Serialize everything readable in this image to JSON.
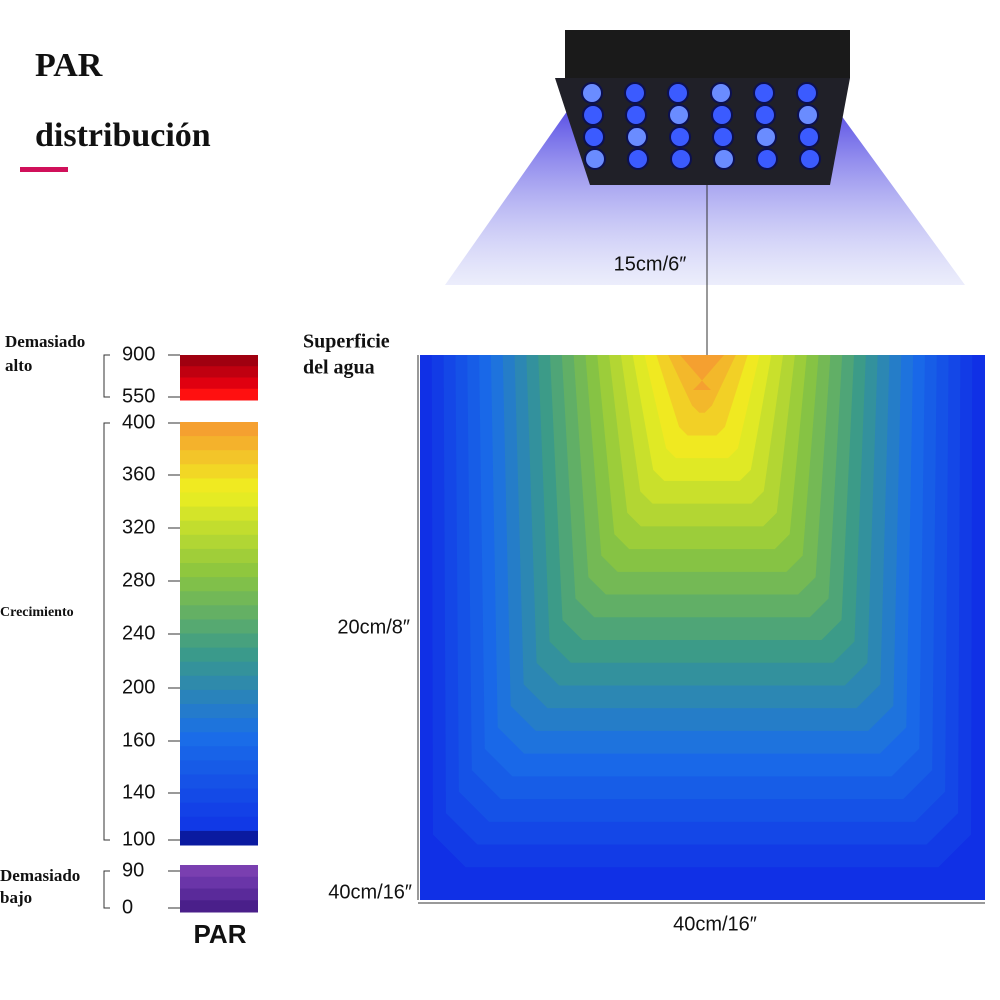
{
  "header": {
    "title_lines": [
      "PAR",
      "distribución"
    ]
  },
  "lamp": {
    "distance": "15cm/6″"
  },
  "scale": {
    "groups": [
      {
        "label_lines": [
          "Demasiado",
          "alto"
        ],
        "ticks": [
          900,
          550
        ]
      },
      {
        "label_lines": [
          "Crecimiento"
        ],
        "ticks": [
          400,
          360,
          320,
          280,
          240,
          200,
          160,
          140,
          100
        ]
      },
      {
        "label_lines": [
          "Demasiado",
          "bajo"
        ],
        "ticks": [
          90,
          0
        ]
      }
    ],
    "caption": "PAR"
  },
  "tank": {
    "surface_lines": [
      "Superficie",
      "del agua"
    ],
    "mid_depth": "20cm/8″",
    "depth": "40cm/16″",
    "width": "40cm/16″"
  }
}
